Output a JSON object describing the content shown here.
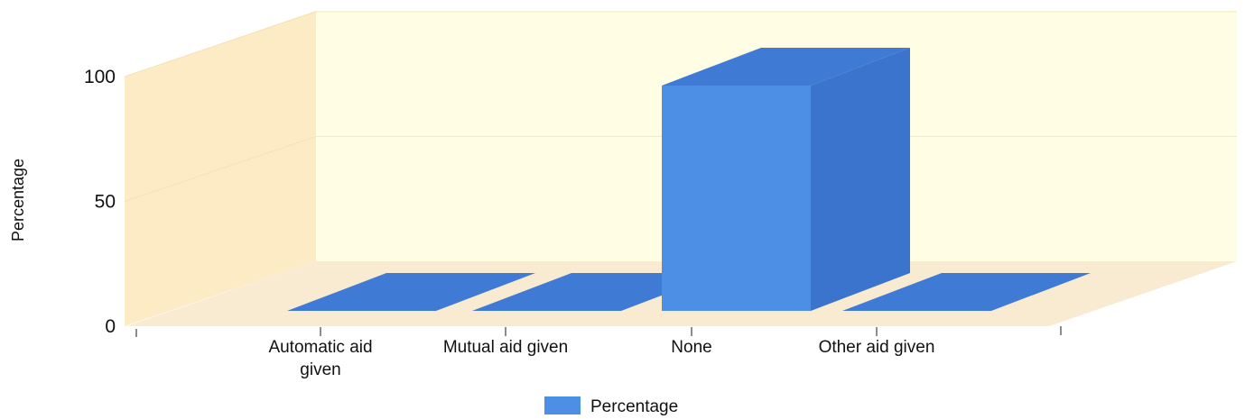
{
  "chart_data": {
    "type": "bar",
    "categories": [
      "Automatic aid given",
      "Mutual aid given",
      "None",
      "Other aid given"
    ],
    "category_label_lines": [
      [
        "Automatic aid",
        "given"
      ],
      [
        "Mutual aid given"
      ],
      [
        "None"
      ],
      [
        "Other aid given"
      ]
    ],
    "series": [
      {
        "name": "Percentage",
        "values": [
          0,
          0,
          100,
          0
        ]
      }
    ],
    "ylabel": "Percentage",
    "xlabel": "",
    "ylim": [
      0,
      100
    ],
    "yticks": [
      0,
      50,
      100
    ],
    "legend": {
      "position": "bottom",
      "entries": [
        "Percentage"
      ]
    },
    "style": "3d",
    "grid": true,
    "colors": {
      "bar_front": "#4e8fe6",
      "bar_top": "#3f7ad4",
      "bar_side": "#3b74cc",
      "wall": "#fffde3",
      "side_wall": "#fdebc6",
      "floor": "#f9ead2"
    }
  }
}
